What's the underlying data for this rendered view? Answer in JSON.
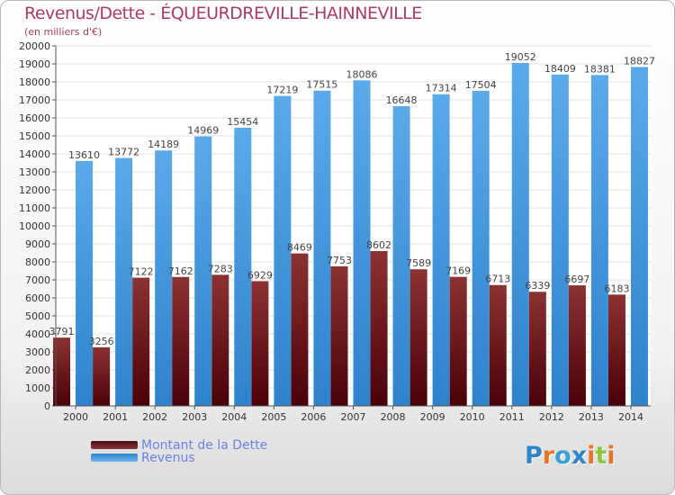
{
  "header": {
    "title": "Revenus/Dette - ÉQUEURDREVILLE-HAINNEVILLE",
    "subtitle": "(en milliers d'€)"
  },
  "legend": [
    {
      "label": "Montant de la Dette",
      "color_top": "#5a0a10",
      "color_bottom": "#8a3a3a"
    },
    {
      "label": "Revenus",
      "color_top": "#3d8fd6",
      "color_bottom": "#5aaaf0"
    }
  ],
  "logo": {
    "letters": [
      {
        "char": "P",
        "color": "#2e86c8"
      },
      {
        "char": "r",
        "color": "#e8742a"
      },
      {
        "char": "o",
        "color": "#3aa0d8"
      },
      {
        "char": "x",
        "color": "#2e86c8"
      },
      {
        "char": "i",
        "color": "#e8742a"
      },
      {
        "char": "t",
        "color": "#8cc63f"
      },
      {
        "char": "i",
        "color": "#e8742a"
      }
    ]
  },
  "chart_data": {
    "type": "bar",
    "categories": [
      "2000",
      "2001",
      "2002",
      "2003",
      "2004",
      "2005",
      "2006",
      "2007",
      "2008",
      "2009",
      "2010",
      "2011",
      "2012",
      "2013",
      "2014"
    ],
    "series": [
      {
        "name": "Montant de la Dette",
        "color": "#7a1a1a",
        "values": [
          3791,
          3256,
          7122,
          7162,
          7283,
          6929,
          8469,
          7753,
          8602,
          7589,
          7169,
          6713,
          6339,
          6697,
          6183
        ],
        "labels": [
          "3791",
          "3256",
          "7122",
          "7162",
          "7283",
          "6929",
          "8469",
          "7753",
          "8602",
          "7589",
          "7169",
          "6713",
          "6339",
          "6697",
          "6183"
        ]
      },
      {
        "name": "Revenus",
        "color": "#4da3e6",
        "values": [
          13610,
          13772,
          14189,
          14969,
          15454,
          17219,
          17515,
          18086,
          16648,
          17314,
          17504,
          19052,
          18409,
          18381,
          18827
        ],
        "labels": [
          "13610",
          "13772",
          "14189",
          "14969",
          "15454",
          "17219",
          "17515",
          "18086",
          "16648",
          "17314",
          "17504",
          "19052",
          "18409",
          "18381",
          "18827"
        ]
      }
    ],
    "ylim": [
      0,
      20000
    ],
    "ytick_step": 1000,
    "grid": true,
    "legend_position": "bottom-left"
  }
}
